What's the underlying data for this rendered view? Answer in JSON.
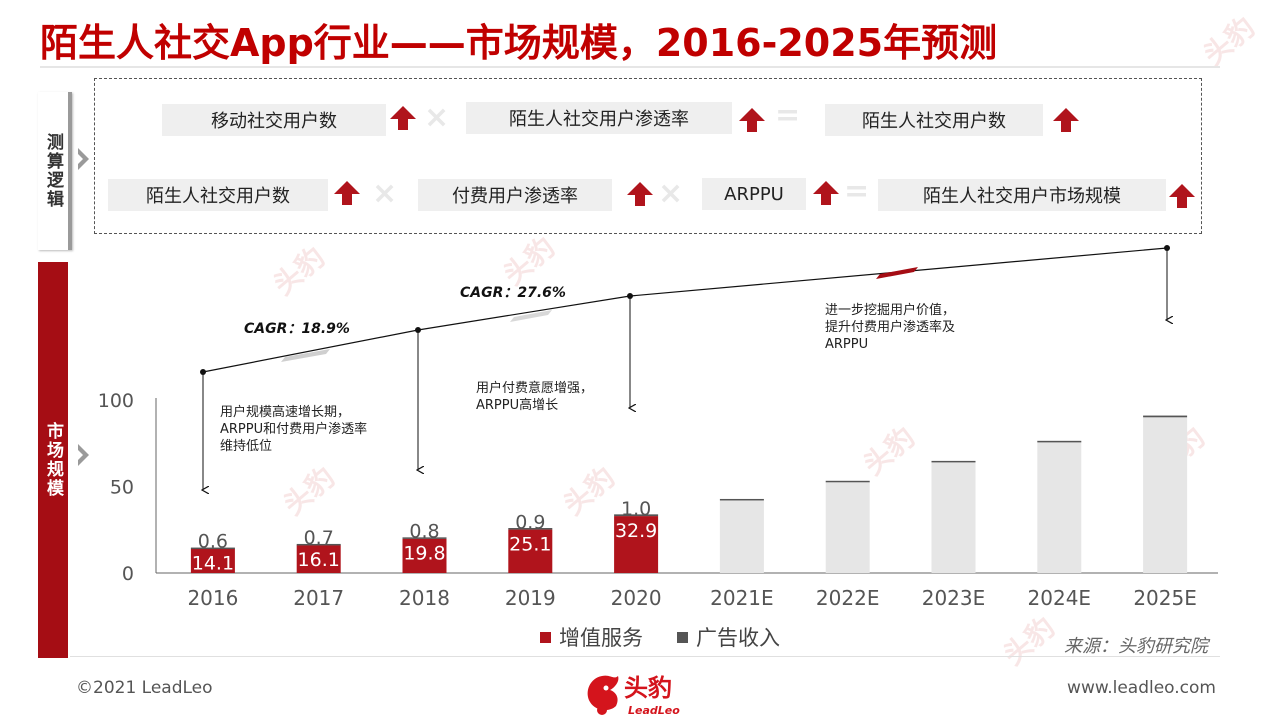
{
  "title": "陌生人社交App行业——市场规模，2016-2025年预测",
  "side_labels": {
    "calc": "测算逻辑",
    "market": "市场规模"
  },
  "logic": {
    "row1": {
      "a": "移动社交用户数",
      "b": "陌生人社交用户渗透率",
      "c": "陌生人社交用户数"
    },
    "row2": {
      "a": "陌生人社交用户数",
      "b": "付费用户渗透率",
      "c": "ARPPU",
      "d": "陌生人社交用户市场规模"
    }
  },
  "annotations": {
    "n1": [
      "用户规模高速增长期，",
      "ARPPU和付费用户渗透率",
      "维持低位"
    ],
    "n2": [
      "用户付费意愿增强，",
      "ARPPU高增长"
    ],
    "n3": [
      "进一步挖掘用户价值，",
      "提升付费用户渗透率及",
      "ARPPU"
    ],
    "cagr1": "CAGR：18.9%",
    "cagr2": "CAGR：27.6%"
  },
  "chart_data": {
    "type": "bar",
    "categories": [
      "2016",
      "2017",
      "2018",
      "2019",
      "2020",
      "2021E",
      "2022E",
      "2023E",
      "2024E",
      "2025E"
    ],
    "series": [
      {
        "name": "增值服务",
        "values": [
          14.1,
          16.1,
          19.8,
          25.1,
          32.9,
          42.0,
          52.5,
          64.0,
          75.5,
          90.0
        ],
        "labels": [
          "14.1",
          "16.1",
          "19.8",
          "25.1",
          "32.9"
        ]
      },
      {
        "name": "广告收入",
        "values": [
          0.6,
          0.7,
          0.8,
          0.9,
          1.0,
          0.8,
          0.8,
          0.8,
          0.9,
          1.0
        ],
        "labels": [
          "0.6",
          "0.7",
          "0.8",
          "0.9",
          "1.0"
        ]
      }
    ],
    "actual_count": 5,
    "ylim": [
      0,
      100
    ],
    "yticks": [
      0,
      50,
      100
    ],
    "colors": {
      "service": "#b0141c",
      "service_forecast": "#e6e6e6",
      "ads": "#555555"
    },
    "legend_position": "bottom"
  },
  "source": "来源：头豹研究院",
  "footer": {
    "copyright": "©2021 LeadLeo",
    "website": "www.leadleo.com"
  },
  "brand": {
    "name": "头豹",
    "sub": "LeadLeo"
  },
  "watermark": "头豹"
}
